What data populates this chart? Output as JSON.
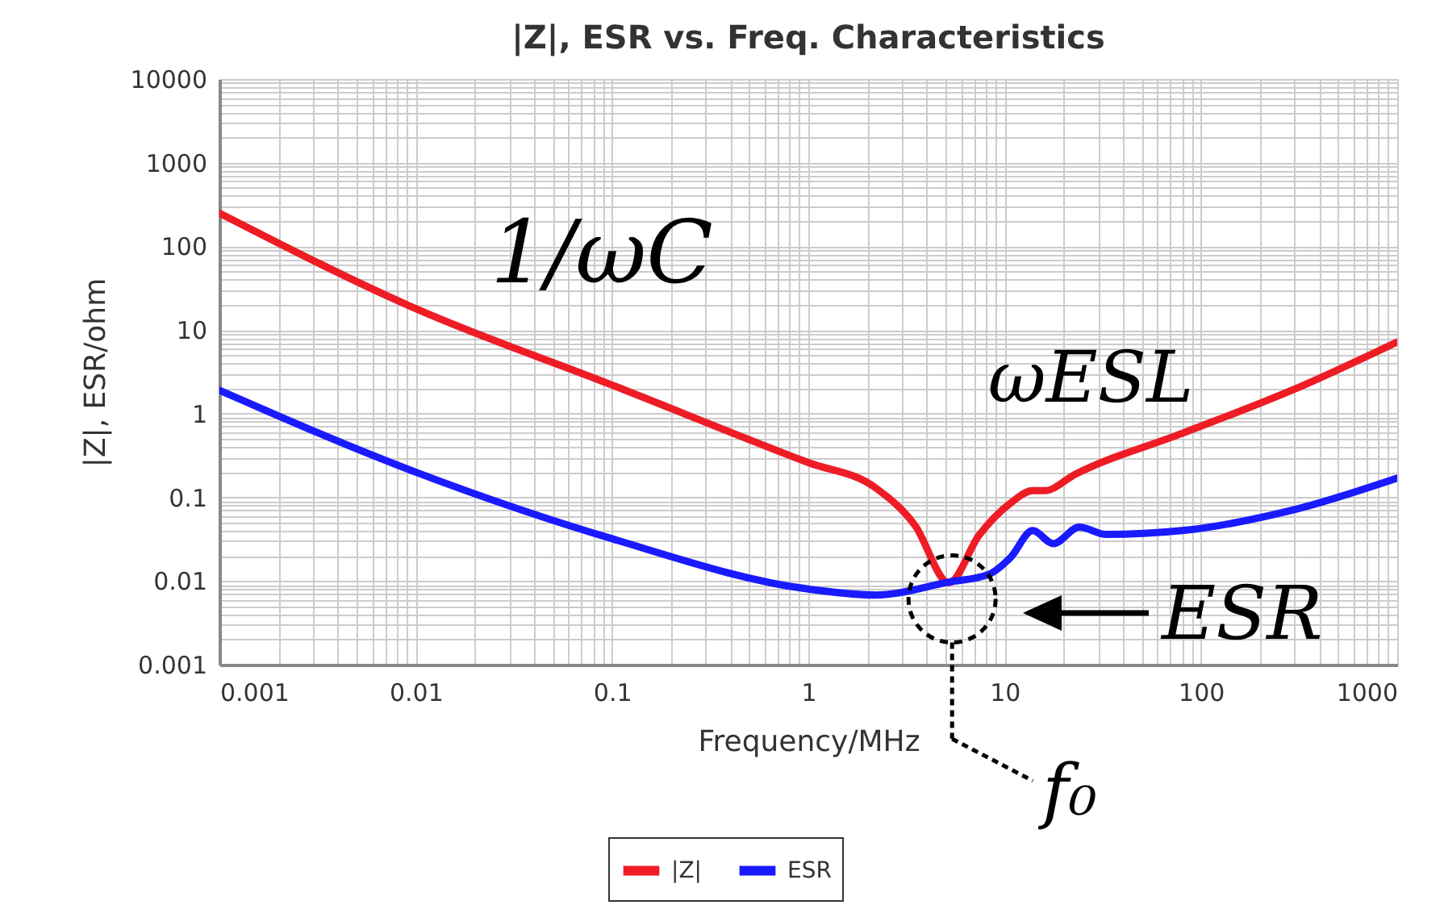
{
  "chart_data": {
    "type": "line",
    "title": "|Z|, ESR vs. Freq. Characteristics",
    "xlabel": "Frequency/MHz",
    "ylabel": "|Z|, ESR/ohm",
    "log": "xy",
    "grid": true,
    "legend": "bottom",
    "marker": "none",
    "line_style": "solid",
    "xlim": [
      0.001,
      1000
    ],
    "xticks": [
      0.001,
      0.01,
      0.1,
      1,
      10,
      100,
      1000
    ],
    "ylim": [
      0.001,
      10000
    ],
    "yticks": [
      0.001,
      0.01,
      0.1,
      1,
      10,
      100,
      1000,
      10000
    ],
    "series": [
      {
        "name": "|Z|",
        "color": "#ee1c25",
        "x": [
          0.001,
          0.01,
          0.1,
          1,
          2.2,
          3.5,
          5.2,
          7.4,
          10.7,
          13.9,
          16,
          23,
          80,
          290,
          1000
        ],
        "values": [
          250,
          18,
          2.2,
          0.26,
          0.13,
          0.046,
          0.0095,
          0.035,
          0.085,
          0.12,
          0.12,
          0.19,
          0.58,
          1.9,
          7.2
        ]
      },
      {
        "name": "ESR",
        "color": "#1a1aff",
        "x": [
          0.001,
          0.01,
          0.1,
          1,
          2.2,
          5.2,
          8.3,
          10.7,
          13.9,
          17.7,
          24,
          33,
          80,
          290,
          1000
        ],
        "values": [
          1.9,
          0.2,
          0.032,
          0.008,
          0.0068,
          0.0097,
          0.012,
          0.019,
          0.04,
          0.028,
          0.044,
          0.036,
          0.04,
          0.07,
          0.17
        ]
      }
    ],
    "annotations": [
      "1/ωC",
      "ωESL",
      "ESR",
      {
        "text": "f₀",
        "x": 5.2,
        "y": 0.0095
      }
    ]
  }
}
